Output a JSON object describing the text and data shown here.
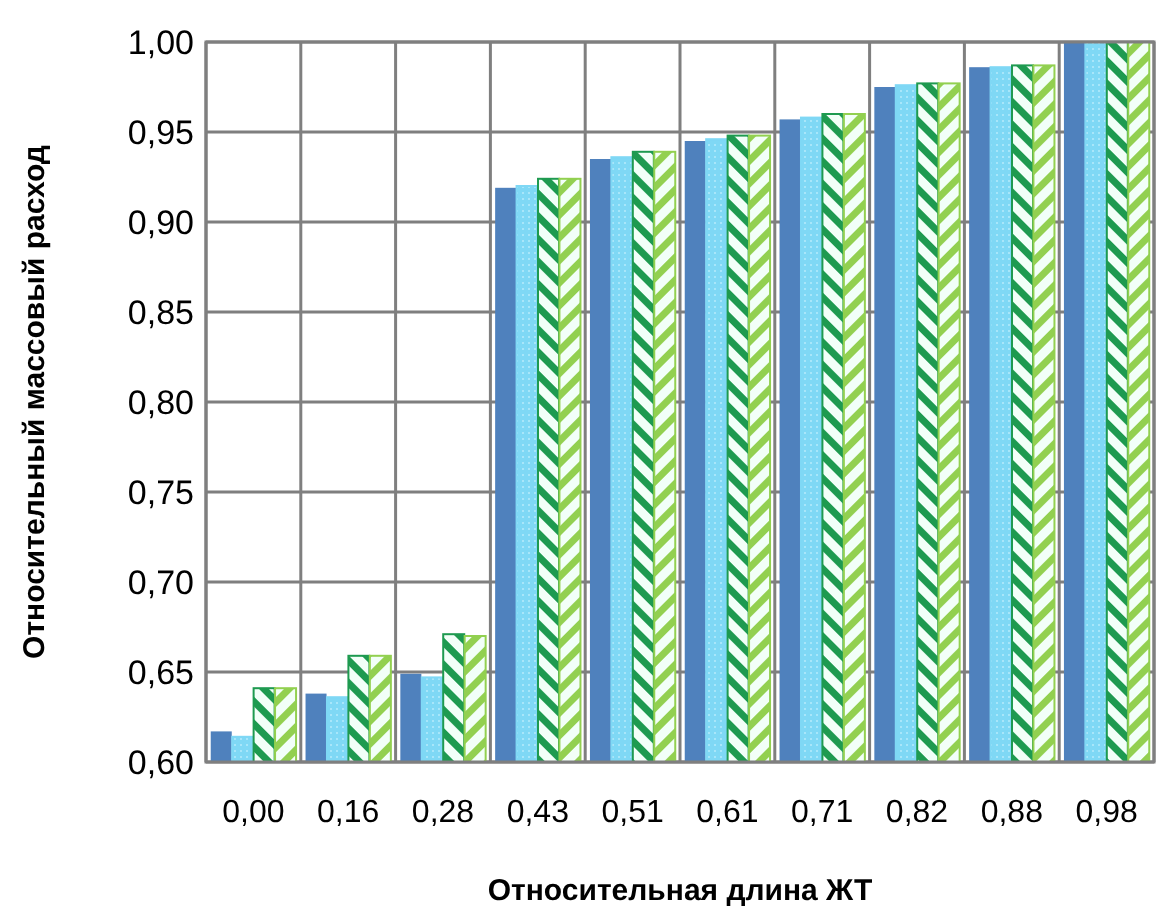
{
  "chart_data": {
    "type": "bar",
    "xlabel": "Относительная длина ЖТ",
    "ylabel": "Относительный массовый расход",
    "categories": [
      "0,00",
      "0,16",
      "0,28",
      "0,43",
      "0,51",
      "0,61",
      "0,71",
      "0,82",
      "0,88",
      "0,98"
    ],
    "series": [
      {
        "color": "#4f81bd",
        "values": [
          0.617,
          0.638,
          0.649,
          0.919,
          0.935,
          0.945,
          0.957,
          0.975,
          0.986,
          1.0
        ]
      },
      {
        "color": "#7fd8f5",
        "values": [
          0.614,
          0.636,
          0.647,
          0.92,
          0.936,
          0.946,
          0.958,
          0.976,
          0.986,
          1.0
        ]
      },
      {
        "color": "#1e9a50",
        "values": [
          0.641,
          0.659,
          0.671,
          0.924,
          0.939,
          0.948,
          0.96,
          0.977,
          0.987,
          1.0
        ]
      },
      {
        "color": "#92d050",
        "values": [
          0.641,
          0.659,
          0.67,
          0.924,
          0.939,
          0.948,
          0.96,
          0.977,
          0.987,
          1.0
        ]
      }
    ],
    "ylim": [
      0.6,
      1.0
    ],
    "yticks": [
      {
        "value": 0.6,
        "label": "0,60"
      },
      {
        "value": 0.65,
        "label": "0,65"
      },
      {
        "value": 0.7,
        "label": "0,70"
      },
      {
        "value": 0.75,
        "label": "0,75"
      },
      {
        "value": 0.8,
        "label": "0,80"
      },
      {
        "value": 0.85,
        "label": "0,85"
      },
      {
        "value": 0.9,
        "label": "0,90"
      },
      {
        "value": 0.95,
        "label": "0,95"
      },
      {
        "value": 1.0,
        "label": "1,00"
      }
    ],
    "grid": true
  }
}
